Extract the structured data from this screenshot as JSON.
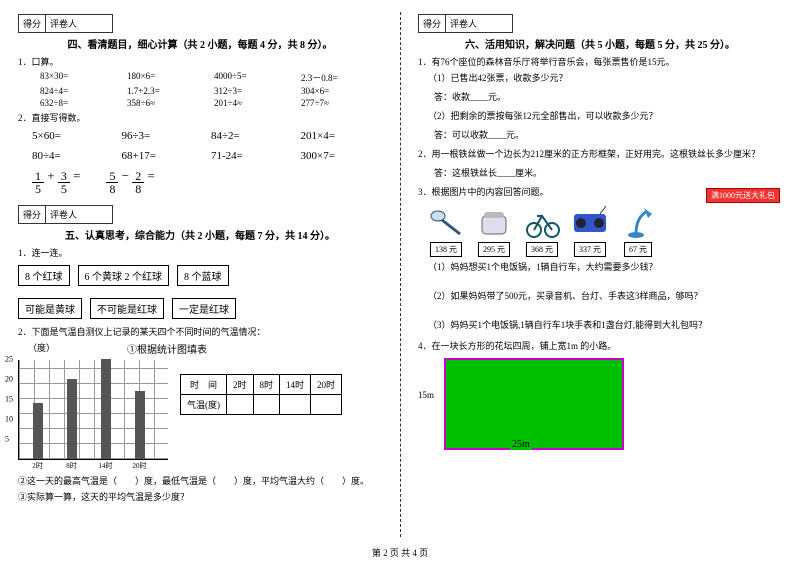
{
  "scorebox": {
    "score_label": "得分",
    "marker_label": "评卷人"
  },
  "left": {
    "sec4_title": "四、看清题目，细心计算（共 2 小题，每题 4 分，共 8 分）。",
    "q1_label": "1．口算。",
    "mental": [
      "83×30=",
      "180×6=",
      "4000÷5=",
      "2.3－0.8=",
      "824÷4=",
      "1.7+2.3=",
      "312÷3=",
      "304×6=",
      "632÷8=",
      "358÷6≈",
      "201÷4≈",
      "277÷7≈"
    ],
    "q2_label": "2．直接写得数。",
    "bigcalc": [
      "5×60=",
      "96÷3=",
      "84÷2=",
      "201×4=",
      "80÷4=",
      "68+17=",
      "71-24=",
      "300×7="
    ],
    "fracs": {
      "f1n": "1",
      "f1d": "5",
      "f2n": "3",
      "f2d": "5",
      "f3n": "5",
      "f3d": "8",
      "f4n": "2",
      "f4d": "8"
    },
    "sec5_title": "五、认真思考，综合能力（共 2 小题，每题 7 分，共 14 分）。",
    "q5_1": "1．连一连。",
    "boxes_top": [
      "8 个红球",
      "6 个黄球 2 个红球",
      "8 个蓝球"
    ],
    "boxes_bot": [
      "可能是黄球",
      "不可能是红球",
      "一定是红球"
    ],
    "q5_2": "2．下面是气温自测仪上记录的某天四个不同时间的气温情况：",
    "chart": {
      "ylabel": "（度）",
      "chart_title": "①根据统计图填表",
      "yticks": [
        5,
        10,
        15,
        20,
        25
      ],
      "bars": [
        {
          "x": "2时",
          "v": 14
        },
        {
          "x": "8时",
          "v": 20
        },
        {
          "x": "14时",
          "v": 25
        },
        {
          "x": "20时",
          "v": 17
        }
      ],
      "table_head": [
        "时　间",
        "2时",
        "8时",
        "14时",
        "20时"
      ],
      "table_row": [
        "气温(度)",
        "",
        "",
        "",
        ""
      ]
    },
    "q5_2b": "②这一天的最高气温是（　　）度，最低气温是（　　）度，平均气温大约（　　）度。",
    "q5_2c": "③实际算一算，这天的平均气温是多少度？"
  },
  "right": {
    "sec6_title": "六、活用知识，解决问题（共 5 小题，每题 5 分，共 25 分）。",
    "q1": "1．有76个座位的森林音乐厅将举行音乐会，每张票售价是15元。",
    "q1_1": "（1）已售出42张票，收款多少元？",
    "q1_ans": "答：收款____元。",
    "q1_2": "（2）把剩余的票按每张12元全部售出，可以收款多少元？",
    "q1_2ans": "答：可以收款____元。",
    "q2": "2．用一根铁丝做一个边长为212厘米的正方形框架，正好用完。这根铁丝长多少厘米？",
    "q2_ans": "答：这根铁丝长____厘米。",
    "q3": "3．根据图片中的内容回答问题。",
    "promo": "满1000元送大礼包",
    "items": [
      {
        "name": "spoon",
        "price": "138 元",
        "color": "#88aacc"
      },
      {
        "name": "cooker",
        "price": "295 元",
        "color": "#9aa"
      },
      {
        "name": "bike",
        "price": "368 元",
        "color": "#2a7"
      },
      {
        "name": "radio",
        "price": "337 元",
        "color": "#35c"
      },
      {
        "name": "lamp",
        "price": "67 元",
        "color": "#38c"
      }
    ],
    "q3_1": "（1）妈妈想买1个电饭锅，1辆自行车，大约需要多少钱？",
    "q3_2": "（2）如果妈妈带了500元，买录音机、台灯、手表这3样商品，够吗？",
    "q3_3": "（3）妈妈买1个电饭锅,1辆自行车1块手表和1盏台灯,能得到大礼包吗？",
    "q4": "4．在一块长方形的花坛四周，铺上宽1m 的小路。",
    "lawn": {
      "w": "15m",
      "l": "25m"
    }
  },
  "footer": "第 2 页 共 4 页"
}
